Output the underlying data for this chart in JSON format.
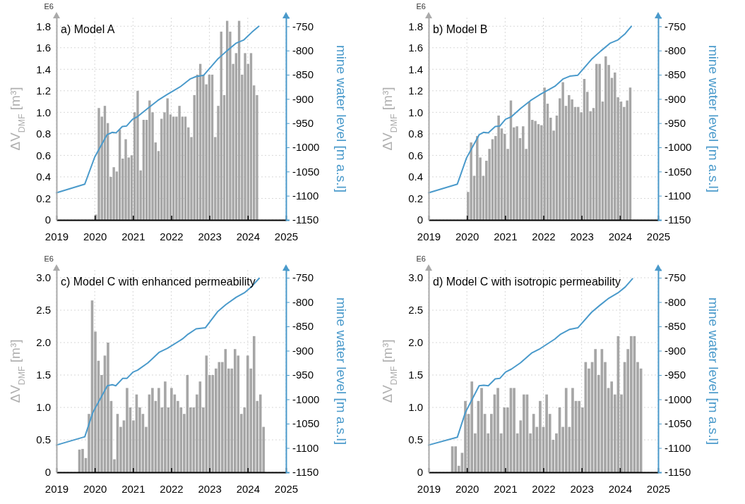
{
  "chart_data": [
    {
      "type": "bar",
      "title": "a) Model A",
      "ylabel": "ΔV$_{DMF}$ [m³]",
      "y2label": "mine water level [m a.s.l]",
      "annotations": [
        "E6"
      ],
      "grid": true,
      "xlim": [
        2019,
        2025
      ],
      "xticks": [
        2019,
        2020,
        2021,
        2022,
        2023,
        2024,
        2025
      ],
      "ylim": [
        0,
        1.88
      ],
      "yticks": [
        0,
        0.2,
        0.4,
        0.6,
        0.8,
        {
          "value": 1,
          "label": "1.0"
        },
        1.2,
        1.4,
        1.6,
        1.8
      ],
      "y2lim": [
        -1150,
        -732
      ],
      "y2ticks": [
        -1150,
        -1100,
        -1050,
        -1000,
        -950,
        -900,
        -850,
        -800,
        -750
      ],
      "series": [
        {
          "color": "#a6a6a6",
          "x": [
            2020.03,
            2020.108,
            2020.186,
            2020.264,
            2020.342,
            2020.42,
            2020.498,
            2020.576,
            2020.654,
            2020.732,
            2020.81,
            2020.888,
            2020.966,
            2021.044,
            2021.122,
            2021.2,
            2021.278,
            2021.356,
            2021.434,
            2021.512,
            2021.59,
            2021.668,
            2021.746,
            2021.824,
            2021.902,
            2021.98,
            2022.058,
            2022.136,
            2022.214,
            2022.292,
            2022.37,
            2022.448,
            2022.526,
            2022.604,
            2022.682,
            2022.76,
            2022.838,
            2022.916,
            2022.994,
            2023.072,
            2023.15,
            2023.228,
            2023.306,
            2023.384,
            2023.462,
            2023.54,
            2023.618,
            2023.696,
            2023.774,
            2023.852,
            2023.93,
            2024.008,
            2024.086,
            2024.164,
            2024.242
          ],
          "values": [
            0.05,
            1.04,
            0.96,
            1.06,
            0.9,
            0.4,
            0.49,
            0.45,
            0.84,
            0.57,
            0.75,
            0.58,
            0.6,
            1.0,
            1.2,
            0.46,
            0.93,
            0.93,
            1.11,
            1.0,
            0.72,
            0.64,
            0.94,
            1.0,
            1.13,
            0.98,
            0.96,
            0.96,
            1.06,
            0.96,
            0.96,
            0.86,
            0.77,
            1.16,
            1.35,
            1.45,
            1.35,
            1.26,
            1.35,
            1.35,
            0.77,
            1.06,
            1.75,
            1.16,
            1.85,
            1.75,
            1.45,
            1.55,
            1.85,
            1.35,
            1.55,
            1.45,
            1.55,
            1.25,
            1.16
          ]
        },
        {
          "type": "line",
          "axis": "y2",
          "color": "#4a9acb",
          "x": [
            2019.0,
            2019.74,
            2020.0,
            2020.32,
            2020.46,
            2020.56,
            2020.72,
            2020.83,
            2020.99,
            2021.11,
            2021.38,
            2021.65,
            2021.89,
            2022.25,
            2022.49,
            2022.64,
            2022.85,
            2023.21,
            2023.45,
            2023.69,
            2023.9,
            2024.11,
            2024.29
          ],
          "values": [
            -1094,
            -1076,
            -1020,
            -974,
            -969,
            -970,
            -957,
            -956,
            -942,
            -937,
            -920,
            -903,
            -891,
            -874,
            -859,
            -854,
            -851,
            -818,
            -801,
            -785,
            -778,
            -762,
            -750
          ]
        }
      ]
    },
    {
      "type": "bar",
      "title": "b) Model B",
      "ylabel": "ΔV$_{DMF}$ [m³]",
      "y2label": "mine water level [m a.s.l]",
      "annotations": [
        "E6"
      ],
      "grid": true,
      "xlim": [
        2019,
        2025
      ],
      "xticks": [
        2019,
        2020,
        2021,
        2022,
        2023,
        2024,
        2025
      ],
      "ylim": [
        0,
        1.88
      ],
      "yticks": [
        0,
        0.2,
        0.4,
        0.6,
        0.8,
        {
          "value": 1,
          "label": "1.0"
        },
        1.2,
        1.4,
        1.6,
        1.8
      ],
      "y2lim": [
        -1150,
        -732
      ],
      "y2ticks": [
        -1150,
        -1100,
        -1050,
        -1000,
        -950,
        -900,
        -850,
        -800,
        -750
      ],
      "series": [
        {
          "color": "#a6a6a6",
          "x": [
            2020.03,
            2020.11,
            2020.19,
            2020.27,
            2020.35,
            2020.43,
            2020.51,
            2020.59,
            2020.67,
            2020.75,
            2020.83,
            2020.91,
            2020.99,
            2021.07,
            2021.15,
            2021.23,
            2021.31,
            2021.39,
            2021.47,
            2021.55,
            2021.63,
            2021.71,
            2021.79,
            2021.87,
            2021.95,
            2022.03,
            2022.11,
            2022.19,
            2022.27,
            2022.35,
            2022.43,
            2022.51,
            2022.59,
            2022.67,
            2022.75,
            2022.83,
            2022.91,
            2022.99,
            2023.07,
            2023.15,
            2023.23,
            2023.31,
            2023.39,
            2023.47,
            2023.55,
            2023.63,
            2023.71,
            2023.79,
            2023.87,
            2023.95,
            2024.03,
            2024.11,
            2024.19,
            2024.27
          ],
          "values": [
            0.26,
            0.72,
            0.41,
            0.78,
            0.58,
            0.41,
            0.55,
            0.66,
            0.75,
            0.78,
            0.97,
            0.85,
            0.8,
            0.66,
            1.11,
            0.86,
            0.87,
            0.76,
            0.87,
            0.66,
            1.1,
            0.93,
            0.92,
            0.89,
            0.88,
            1.23,
            1.08,
            0.95,
            0.83,
            0.97,
            1.13,
            1.28,
            1.06,
            1.16,
            1.12,
            1.05,
            1.05,
            1.0,
            1.31,
            1.19,
            1.01,
            1.04,
            1.45,
            1.45,
            1.1,
            1.52,
            1.44,
            1.32,
            1.37,
            1.14,
            1.1,
            1.05,
            1.11,
            1.23
          ]
        },
        {
          "type": "line",
          "axis": "y2",
          "color": "#4a9acb",
          "x": [
            2019.0,
            2019.75,
            2019.99,
            2020.32,
            2020.44,
            2020.56,
            2020.74,
            2020.86,
            2021.01,
            2021.16,
            2021.4,
            2021.67,
            2021.91,
            2022.3,
            2022.51,
            2022.69,
            2022.9,
            2023.26,
            2023.5,
            2023.74,
            2023.95,
            2024.14,
            2024.3
          ],
          "values": [
            -1094,
            -1076,
            -1022,
            -974,
            -969,
            -970,
            -957,
            -956,
            -942,
            -937,
            -920,
            -903,
            -891,
            -874,
            -859,
            -853,
            -851,
            -818,
            -801,
            -785,
            -778,
            -765,
            -750
          ]
        }
      ]
    },
    {
      "type": "bar",
      "title": "c) Model C with enhanced permeability",
      "ylabel": "ΔV$_{DMF}$ [m³]",
      "y2label": "mine water level [m a.s.l]",
      "annotations": [
        "E6"
      ],
      "grid": true,
      "xlim": [
        2019,
        2025
      ],
      "xticks": [
        2019,
        2020,
        2021,
        2022,
        2023,
        2024,
        2025
      ],
      "ylim": [
        0,
        3.12
      ],
      "yticks": [
        0,
        0.5,
        {
          "value": 1,
          "label": "1.0"
        },
        1.5,
        {
          "value": 2,
          "label": "2.0"
        },
        2.5,
        {
          "value": 3,
          "label": "3.0"
        }
      ],
      "y2lim": [
        -1150,
        -734
      ],
      "y2ticks": [
        -1150,
        -1100,
        -1050,
        -1000,
        -950,
        -900,
        -850,
        -800,
        -750
      ],
      "series": [
        {
          "color": "#a6a6a6",
          "x": [
            2019.6,
            2019.683,
            2019.766,
            2019.849,
            2019.932,
            2020.015,
            2020.098,
            2020.181,
            2020.264,
            2020.347,
            2020.43,
            2020.513,
            2020.596,
            2020.679,
            2020.762,
            2020.845,
            2020.928,
            2021.011,
            2021.094,
            2021.177,
            2021.26,
            2021.343,
            2021.426,
            2021.509,
            2021.592,
            2021.675,
            2021.758,
            2021.841,
            2021.924,
            2022.007,
            2022.09,
            2022.173,
            2022.256,
            2022.339,
            2022.422,
            2022.505,
            2022.588,
            2022.671,
            2022.754,
            2022.837,
            2022.92,
            2023.003,
            2023.086,
            2023.169,
            2023.252,
            2023.335,
            2023.418,
            2023.501,
            2023.584,
            2023.667,
            2023.75,
            2023.833,
            2023.916,
            2023.999,
            2024.082,
            2024.165,
            2024.248,
            2024.331,
            2024.414
          ],
          "values": [
            0.35,
            0.36,
            0.22,
            0.9,
            2.65,
            2.17,
            1.72,
            1.5,
            1.8,
            2.0,
            1.1,
            0.2,
            0.9,
            0.7,
            0.8,
            1.3,
            1.0,
            0.8,
            1.2,
            1.0,
            0.9,
            0.7,
            1.2,
            1.3,
            1.1,
            1.3,
            1.0,
            1.4,
            1.0,
            1.3,
            1.2,
            1.1,
            1.0,
            0.9,
            1.5,
            1.0,
            1.0,
            1.2,
            1.4,
            1.0,
            1.8,
            1.5,
            1.5,
            1.6,
            1.7,
            1.7,
            1.9,
            1.6,
            1.6,
            1.9,
            1.8,
            0.9,
            1.0,
            1.8,
            1.6,
            2.1,
            1.1,
            1.2,
            0.7
          ]
        },
        {
          "type": "line",
          "axis": "y2",
          "color": "#4a9acb",
          "x": [
            2019.0,
            2019.74,
            2019.95,
            2020.33,
            2020.46,
            2020.55,
            2020.73,
            2020.84,
            2021.0,
            2021.12,
            2021.39,
            2021.69,
            2021.9,
            2022.29,
            2022.44,
            2022.65,
            2022.89,
            2023.22,
            2023.43,
            2023.7,
            2023.91,
            2024.09,
            2024.3
          ],
          "values": [
            -1094,
            -1077,
            -1027,
            -972,
            -970,
            -972,
            -957,
            -957,
            -944,
            -940,
            -925,
            -903,
            -895,
            -876,
            -866,
            -855,
            -853,
            -819,
            -805,
            -790,
            -781,
            -769,
            -751
          ]
        }
      ]
    },
    {
      "type": "bar",
      "title": "d) Model C with isotropic permeability",
      "ylabel": "ΔV$_{DMF}$ [m³]",
      "y2label": "mine water level [m a.s.l]",
      "annotations": [
        "E6"
      ],
      "grid": true,
      "xlim": [
        2019,
        2025
      ],
      "xticks": [
        2019,
        2020,
        2021,
        2022,
        2023,
        2024,
        2025
      ],
      "ylim": [
        0,
        3.12
      ],
      "yticks": [
        0,
        0.5,
        {
          "value": 1,
          "label": "1.0"
        },
        1.5,
        {
          "value": 2,
          "label": "2.0"
        },
        2.5,
        {
          "value": 3,
          "label": "3.0"
        }
      ],
      "y2lim": [
        -1150,
        -734
      ],
      "y2ticks": [
        -1150,
        -1100,
        -1050,
        -1000,
        -950,
        -900,
        -850,
        -800,
        -750
      ],
      "series": [
        {
          "color": "#a6a6a6",
          "x": [
            2019.62,
            2019.705,
            2019.79,
            2019.875,
            2019.96,
            2020.045,
            2020.13,
            2020.215,
            2020.3,
            2020.385,
            2020.47,
            2020.555,
            2020.64,
            2020.725,
            2020.81,
            2020.895,
            2020.98,
            2021.065,
            2021.15,
            2021.235,
            2021.32,
            2021.405,
            2021.49,
            2021.575,
            2021.66,
            2021.745,
            2021.83,
            2021.915,
            2022.0,
            2022.085,
            2022.17,
            2022.255,
            2022.34,
            2022.425,
            2022.51,
            2022.595,
            2022.68,
            2022.765,
            2022.85,
            2022.935,
            2023.02,
            2023.105,
            2023.19,
            2023.275,
            2023.36,
            2023.445,
            2023.53,
            2023.615,
            2023.7,
            2023.785,
            2023.87,
            2023.955,
            2024.04,
            2024.125,
            2024.21,
            2024.295,
            2024.38,
            2024.465,
            2024.55
          ],
          "values": [
            0.4,
            0.4,
            0.1,
            0.3,
            1.1,
            0.9,
            1.4,
            0.6,
            1.1,
            1.3,
            0.9,
            0.6,
            0.9,
            1.2,
            1.3,
            0.6,
            1.0,
            1.0,
            1.3,
            1.3,
            0.6,
            0.8,
            1.2,
            1.2,
            0.6,
            0.9,
            0.7,
            1.1,
            0.7,
            1.2,
            0.9,
            0.5,
            0.6,
            1.0,
            0.7,
            1.3,
            0.7,
            1.3,
            1.1,
            1.1,
            1.0,
            1.7,
            1.6,
            1.7,
            1.9,
            1.5,
            1.9,
            1.7,
            1.3,
            1.4,
            1.2,
            2.1,
            1.2,
            1.7,
            1.9,
            2.1,
            2.1,
            1.7,
            1.6
          ]
        },
        {
          "type": "line",
          "axis": "y2",
          "color": "#4a9acb",
          "x": [
            2019.0,
            2019.75,
            2019.96,
            2020.32,
            2020.44,
            2020.56,
            2020.74,
            2020.86,
            2021.01,
            2021.16,
            2021.4,
            2021.69,
            2021.91,
            2022.3,
            2022.45,
            2022.69,
            2022.9,
            2023.26,
            2023.47,
            2023.71,
            2023.95,
            2024.14,
            2024.33
          ],
          "values": [
            -1094,
            -1078,
            -1027,
            -972,
            -971,
            -972,
            -958,
            -957,
            -944,
            -938,
            -925,
            -905,
            -896,
            -876,
            -866,
            -856,
            -853,
            -821,
            -807,
            -792,
            -781,
            -769,
            -752
          ]
        }
      ]
    }
  ]
}
